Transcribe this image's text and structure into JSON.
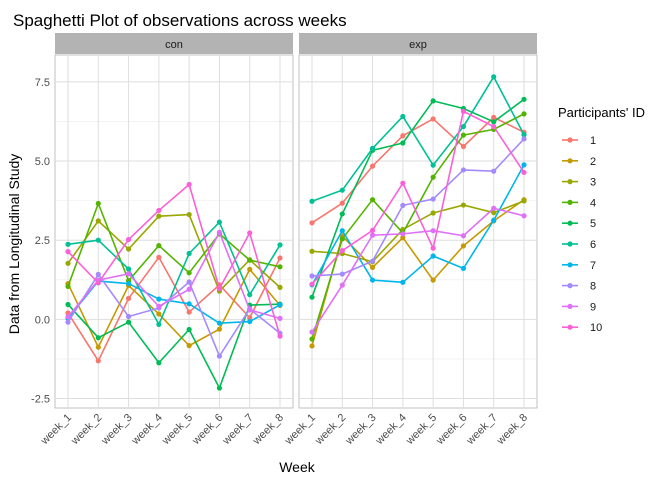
{
  "chart_data": {
    "type": "line",
    "title": "Spaghetti Plot of observations across weeks",
    "xlabel": "Week",
    "ylabel": "Data from Longitudinal Study",
    "x": [
      "week_1",
      "week_2",
      "week_3",
      "week_4",
      "week_5",
      "week_6",
      "week_7",
      "week_8"
    ],
    "ylim": [
      -2.8,
      8.35
    ],
    "yticks": [
      -2.5,
      0.0,
      2.5,
      5.0,
      7.5
    ],
    "ytick_labels": [
      "-2.5",
      "0.0",
      "2.5",
      "5.0",
      "7.5"
    ],
    "grid": true,
    "legend_title": "Participants' ID",
    "legend_position": "right",
    "facets": [
      {
        "name": "con",
        "series": [
          {
            "name": "1",
            "color": "#F8766D",
            "values": [
              0.2,
              -1.31,
              0.66,
              1.96,
              0.23,
              1.09,
              0.05,
              1.94
            ]
          },
          {
            "name": "2",
            "color": "#C49A00",
            "values": [
              1.13,
              -0.88,
              1.07,
              0.17,
              -0.83,
              -0.31,
              1.58,
              0.44
            ]
          },
          {
            "name": "3",
            "color": "#99A800",
            "values": [
              1.77,
              3.11,
              2.22,
              3.26,
              3.31,
              0.89,
              1.88,
              1.01
            ]
          },
          {
            "name": "4",
            "color": "#53B400",
            "values": [
              1.04,
              3.66,
              1.22,
              2.33,
              1.47,
              2.7,
              1.87,
              1.66
            ]
          },
          {
            "name": "5",
            "color": "#00BC56",
            "values": [
              0.47,
              -0.58,
              -0.09,
              -1.37,
              -0.32,
              -2.17,
              0.45,
              0.48
            ]
          },
          {
            "name": "6",
            "color": "#00C094",
            "values": [
              2.37,
              2.5,
              1.59,
              -0.16,
              2.08,
              3.07,
              0.78,
              2.35
            ]
          },
          {
            "name": "7",
            "color": "#00B6EB",
            "values": [
              0.03,
              1.21,
              1.13,
              0.64,
              0.49,
              -0.12,
              -0.07,
              0.46
            ]
          },
          {
            "name": "8",
            "color": "#A58AFF",
            "values": [
              -0.09,
              1.42,
              0.09,
              0.36,
              1.18,
              -1.16,
              0.33,
              -0.44
            ]
          },
          {
            "name": "9",
            "color": "#DF70F8",
            "values": [
              0.08,
              1.24,
              1.44,
              0.41,
              0.95,
              2.75,
              0.3,
              0.03
            ]
          },
          {
            "name": "10",
            "color": "#FB61D7",
            "values": [
              2.14,
              1.15,
              2.52,
              3.44,
              4.26,
              0.97,
              2.73,
              -0.53
            ]
          }
        ]
      },
      {
        "name": "exp",
        "series": [
          {
            "name": "1",
            "color": "#F8766D",
            "values": [
              3.05,
              3.67,
              4.84,
              5.8,
              6.33,
              5.46,
              6.38,
              5.91
            ]
          },
          {
            "name": "2",
            "color": "#C49A00",
            "values": [
              -0.84,
              2.63,
              1.64,
              2.58,
              1.24,
              2.32,
              3.11,
              3.78
            ]
          },
          {
            "name": "3",
            "color": "#99A800",
            "values": [
              2.15,
              2.08,
              1.82,
              2.84,
              3.36,
              3.61,
              3.37,
              3.74
            ]
          },
          {
            "name": "4",
            "color": "#53B400",
            "values": [
              -0.62,
              2.54,
              3.78,
              2.73,
              4.49,
              5.82,
              6.0,
              6.49
            ]
          },
          {
            "name": "5",
            "color": "#00BC56",
            "values": [
              0.7,
              3.33,
              5.34,
              5.57,
              6.9,
              6.66,
              6.24,
              6.95
            ]
          },
          {
            "name": "6",
            "color": "#00C094",
            "values": [
              3.73,
              4.08,
              5.4,
              6.41,
              4.87,
              6.09,
              7.66,
              5.83
            ]
          },
          {
            "name": "7",
            "color": "#00B6EB",
            "values": [
              1.09,
              2.8,
              1.24,
              1.17,
              2.0,
              1.61,
              3.13,
              4.88
            ]
          },
          {
            "name": "8",
            "color": "#A58AFF",
            "values": [
              1.37,
              1.43,
              1.84,
              3.6,
              3.8,
              4.72,
              4.68,
              5.7
            ]
          },
          {
            "name": "9",
            "color": "#DF70F8",
            "values": [
              -0.4,
              1.08,
              2.66,
              2.7,
              2.8,
              2.64,
              3.51,
              3.27
            ]
          },
          {
            "name": "10",
            "color": "#FB61D7",
            "values": [
              1.11,
              2.17,
              2.81,
              4.3,
              2.25,
              6.57,
              6.09,
              4.64
            ]
          }
        ]
      }
    ]
  }
}
